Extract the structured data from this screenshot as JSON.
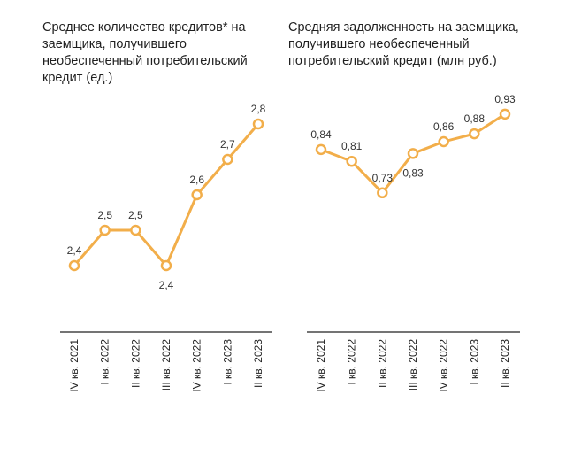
{
  "colors": {
    "line": "#F2AE4A",
    "marker_fill": "#ffffff",
    "axis": "#222222"
  },
  "chart_data": [
    {
      "type": "line",
      "title": "Среднее количество кредитов* на заемщика, получившего необеспеченный потребительский кредит (ед.)",
      "categories": [
        "IV кв. 2021",
        "I кв. 2022",
        "II кв. 2022",
        "III кв. 2022",
        "IV кв. 2022",
        "I кв. 2023",
        "II кв. 2023"
      ],
      "series": [
        {
          "values": [
            2.4,
            2.5,
            2.5,
            2.4,
            2.6,
            2.7,
            2.8
          ]
        }
      ],
      "data_labels": [
        "2,4",
        "2,5",
        "2,5",
        "2,4",
        "2,6",
        "2,7",
        "2,8"
      ],
      "label_position": [
        "above",
        "above",
        "above",
        "below",
        "above",
        "above",
        "above"
      ],
      "ylim": [
        2.35,
        2.85
      ],
      "grid": false,
      "legend": "none"
    },
    {
      "type": "line",
      "title": "Средняя задолженность на заемщика, получившего необеспеченный потребительский кредит (млн руб.)",
      "categories": [
        "IV кв. 2021",
        "I кв. 2022",
        "II кв. 2022",
        "III кв. 2022",
        "IV кв. 2022",
        "I кв. 2023",
        "II кв. 2023"
      ],
      "series": [
        {
          "values": [
            0.84,
            0.81,
            0.73,
            0.83,
            0.86,
            0.88,
            0.93
          ]
        }
      ],
      "data_labels": [
        "0,84",
        "0,81",
        "0,73",
        "0,83",
        "0,86",
        "0,88",
        "0,93"
      ],
      "label_position": [
        "above",
        "above",
        "above",
        "below",
        "above",
        "above",
        "above"
      ],
      "ylim": [
        0.5,
        0.95
      ],
      "grid": false,
      "legend": "none"
    }
  ]
}
